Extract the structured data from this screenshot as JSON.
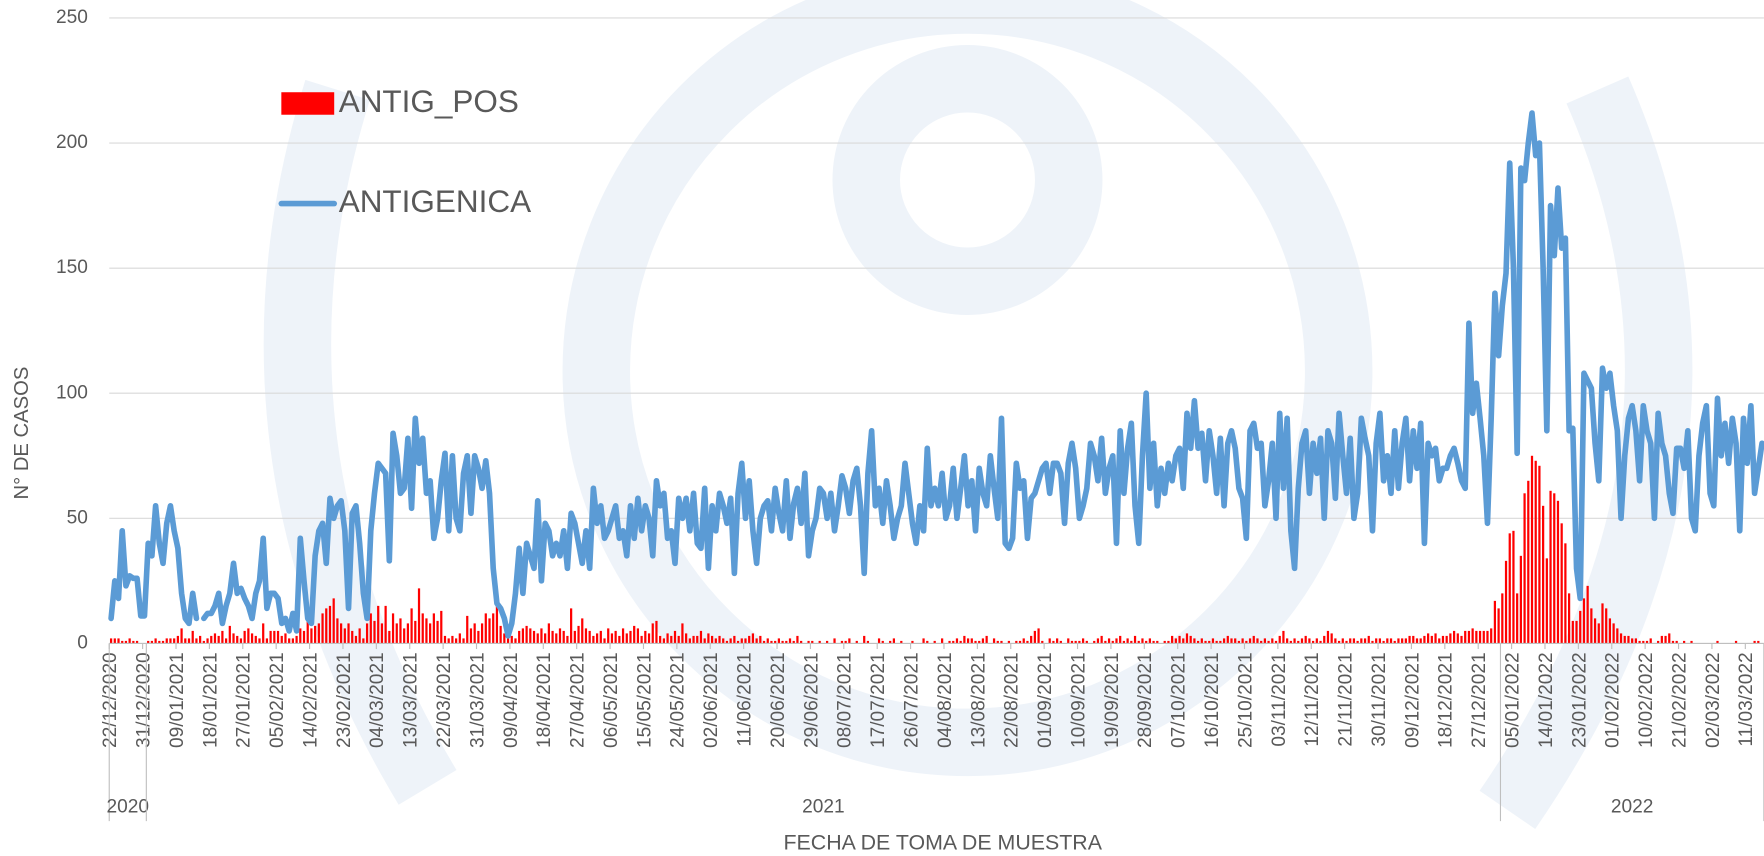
{
  "chart_data": {
    "type": "combo",
    "x_label": "FECHA DE TOMA DE MUESTRA",
    "y_label": "N° DE CASOS",
    "ylim": [
      0,
      250
    ],
    "yticks": [
      0,
      50,
      100,
      150,
      200,
      250
    ],
    "grid": true,
    "legend": "upper-left",
    "categories": [
      "22/12/2020",
      null,
      null,
      null,
      null,
      null,
      null,
      null,
      null,
      "31/12/2020",
      null,
      null,
      null,
      null,
      null,
      null,
      null,
      null,
      "09/01/2021",
      null,
      null,
      null,
      null,
      null,
      null,
      null,
      null,
      "18/01/2021",
      null,
      null,
      null,
      null,
      null,
      null,
      null,
      null,
      "27/01/2021",
      null,
      null,
      null,
      null,
      null,
      null,
      null,
      null,
      "05/02/2021",
      null,
      null,
      null,
      null,
      null,
      null,
      null,
      null,
      "14/02/2021",
      null,
      null,
      null,
      null,
      null,
      null,
      null,
      null,
      "23/02/2021",
      null,
      null,
      null,
      null,
      null,
      null,
      null,
      null,
      "04/03/2021",
      null,
      null,
      null,
      null,
      null,
      null,
      null,
      null,
      "13/03/2021",
      null,
      null,
      null,
      null,
      null,
      null,
      null,
      null,
      "22/03/2021",
      null,
      null,
      null,
      null,
      null,
      null,
      null,
      null,
      "31/03/2021",
      null,
      null,
      null,
      null,
      null,
      null,
      null,
      null,
      "09/04/2021",
      null,
      null,
      null,
      null,
      null,
      null,
      null,
      null,
      "18/04/2021",
      null,
      null,
      null,
      null,
      null,
      null,
      null,
      null,
      "27/04/2021",
      null,
      null,
      null,
      null,
      null,
      null,
      null,
      null,
      "06/05/2021",
      null,
      null,
      null,
      null,
      null,
      null,
      null,
      null,
      "15/05/2021",
      null,
      null,
      null,
      null,
      null,
      null,
      null,
      null,
      "24/05/2021",
      null,
      null,
      null,
      null,
      null,
      null,
      null,
      null,
      "02/06/2021",
      null,
      null,
      null,
      null,
      null,
      null,
      null,
      null,
      "11/06/2021",
      null,
      null,
      null,
      null,
      null,
      null,
      null,
      null,
      "20/06/2021",
      null,
      null,
      null,
      null,
      null,
      null,
      null,
      null,
      "29/06/2021",
      null,
      null,
      null,
      null,
      null,
      null,
      null,
      null,
      "08/07/2021",
      null,
      null,
      null,
      null,
      null,
      null,
      null,
      null,
      "17/07/2021",
      null,
      null,
      null,
      null,
      null,
      null,
      null,
      null,
      "26/07/2021",
      null,
      null,
      null,
      null,
      null,
      null,
      null,
      null,
      "04/08/2021",
      null,
      null,
      null,
      null,
      null,
      null,
      null,
      null,
      "13/08/2021",
      null,
      null,
      null,
      null,
      null,
      null,
      null,
      null,
      "22/08/2021",
      null,
      null,
      null,
      null,
      null,
      null,
      null,
      null,
      "01/09/2021",
      null,
      null,
      null,
      null,
      null,
      null,
      null,
      null,
      "10/09/2021",
      null,
      null,
      null,
      null,
      null,
      null,
      null,
      null,
      "19/09/2021",
      null,
      null,
      null,
      null,
      null,
      null,
      null,
      null,
      "28/09/2021",
      null,
      null,
      null,
      null,
      null,
      null,
      null,
      null,
      "07/10/2021",
      null,
      null,
      null,
      null,
      null,
      null,
      null,
      null,
      "16/10/2021",
      null,
      null,
      null,
      null,
      null,
      null,
      null,
      null,
      "25/10/2021",
      null,
      null,
      null,
      null,
      null,
      null,
      null,
      null,
      "03/11/2021",
      null,
      null,
      null,
      null,
      null,
      null,
      null,
      null,
      "12/11/2021",
      null,
      null,
      null,
      null,
      null,
      null,
      null,
      null,
      "21/11/2021",
      null,
      null,
      null,
      null,
      null,
      null,
      null,
      null,
      "30/11/2021",
      null,
      null,
      null,
      null,
      null,
      null,
      null,
      null,
      "09/12/2021",
      null,
      null,
      null,
      null,
      null,
      null,
      null,
      null,
      "18/12/2021",
      null,
      null,
      null,
      null,
      null,
      null,
      null,
      null,
      "27/12/2021",
      null,
      null,
      null,
      null,
      null,
      null,
      null,
      null,
      "05/01/2022",
      null,
      null,
      null,
      null,
      null,
      null,
      null,
      null,
      "14/01/2022",
      null,
      null,
      null,
      null,
      null,
      null,
      null,
      null,
      "23/01/2022",
      null,
      null,
      null,
      null,
      null,
      null,
      null,
      null,
      "01/02/2022",
      null,
      null,
      null,
      null,
      null,
      null,
      null,
      null,
      "10/02/2022",
      null,
      null,
      null,
      null,
      null,
      null,
      null,
      null,
      "21/02/2022",
      null,
      null,
      null,
      null,
      null,
      null,
      null,
      null,
      "02/03/2022",
      null,
      null,
      null,
      null,
      null,
      null,
      null,
      null,
      "11/03/2022",
      null,
      null,
      null,
      null
    ],
    "category_groups": [
      {
        "name": "2020",
        "count": 10
      },
      {
        "name": "2021",
        "count": 365
      },
      {
        "name": "2022",
        "count": 71
      }
    ],
    "series": [
      {
        "name": "ANTIG_POS",
        "type": "bar",
        "color": "#ff0000",
        "values": [
          2,
          2,
          2,
          1,
          1,
          2,
          1,
          1,
          0,
          0,
          1,
          1,
          2,
          1,
          1,
          2,
          2,
          2,
          3,
          6,
          2,
          2,
          5,
          2,
          3,
          1,
          2,
          3,
          4,
          3,
          5,
          2,
          7,
          4,
          3,
          2,
          5,
          6,
          4,
          3,
          2,
          8,
          2,
          5,
          5,
          5,
          3,
          4,
          2,
          2,
          3,
          6,
          5,
          10,
          6,
          7,
          8,
          12,
          14,
          15,
          18,
          10,
          8,
          6,
          8,
          5,
          3,
          6,
          2,
          8,
          12,
          9,
          15,
          8,
          15,
          5,
          12,
          8,
          10,
          6,
          8,
          14,
          9,
          22,
          12,
          10,
          8,
          12,
          9,
          13,
          3,
          2,
          3,
          2,
          4,
          2,
          11,
          6,
          8,
          5,
          8,
          12,
          10,
          12,
          18,
          7,
          4,
          2,
          3,
          2,
          5,
          6,
          7,
          6,
          5,
          4,
          6,
          4,
          8,
          5,
          4,
          6,
          5,
          3,
          14,
          5,
          7,
          10,
          6,
          5,
          3,
          4,
          5,
          2,
          6,
          4,
          5,
          3,
          6,
          4,
          5,
          7,
          6,
          3,
          5,
          4,
          8,
          9,
          3,
          2,
          4,
          3,
          5,
          3,
          8,
          4,
          2,
          3,
          3,
          5,
          2,
          4,
          3,
          2,
          3,
          2,
          1,
          2,
          3,
          1,
          2,
          2,
          3,
          4,
          2,
          3,
          1,
          2,
          1,
          1,
          2,
          1,
          1,
          2,
          1,
          3,
          1,
          0,
          1,
          1,
          0,
          1,
          0,
          1,
          0,
          2,
          0,
          1,
          1,
          2,
          0,
          1,
          0,
          3,
          1,
          0,
          0,
          2,
          1,
          0,
          1,
          2,
          0,
          1,
          0,
          0,
          1,
          0,
          0,
          2,
          1,
          0,
          1,
          0,
          2,
          0,
          1,
          1,
          2,
          1,
          3,
          2,
          2,
          1,
          1,
          2,
          3,
          0,
          2,
          1,
          1,
          0,
          1,
          0,
          1,
          1,
          2,
          1,
          3,
          5,
          6,
          1,
          0,
          2,
          1,
          2,
          1,
          0,
          2,
          1,
          1,
          1,
          2,
          1,
          0,
          1,
          2,
          3,
          1,
          2,
          1,
          2,
          3,
          1,
          2,
          1,
          3,
          1,
          2,
          1,
          2,
          1,
          1,
          0,
          1,
          1,
          3,
          2,
          3,
          2,
          4,
          3,
          2,
          1,
          2,
          1,
          1,
          2,
          1,
          1,
          2,
          3,
          2,
          2,
          1,
          2,
          1,
          2,
          3,
          2,
          1,
          2,
          1,
          2,
          1,
          3,
          5,
          2,
          1,
          2,
          1,
          2,
          3,
          2,
          1,
          2,
          1,
          3,
          5,
          4,
          2,
          1,
          2,
          1,
          2,
          2,
          1,
          2,
          2,
          3,
          1,
          2,
          2,
          1,
          2,
          2,
          1,
          2,
          2,
          2,
          3,
          3,
          2,
          2,
          3,
          4,
          3,
          4,
          2,
          3,
          3,
          4,
          5,
          4,
          3,
          5,
          5,
          6,
          5,
          5,
          5,
          5,
          6,
          17,
          14,
          20,
          33,
          44,
          45,
          20,
          35,
          60,
          65,
          75,
          73,
          71,
          55,
          34,
          61,
          60,
          57,
          48,
          40,
          20,
          9,
          9,
          13,
          18,
          23,
          14,
          10,
          8,
          16,
          14,
          10,
          8,
          6,
          4,
          3,
          3,
          2,
          2,
          1,
          1,
          1,
          2,
          0,
          1,
          3,
          3,
          4,
          1,
          1,
          0,
          1,
          0,
          1,
          0,
          0,
          0,
          0,
          0,
          0,
          1,
          0,
          0,
          0,
          0,
          1,
          0,
          0,
          0,
          0,
          1,
          1,
          0
        ]
      },
      {
        "name": "ANTIGENICA",
        "type": "line",
        "color": "#5b9bd5",
        "values": [
          10,
          25,
          18,
          45,
          23,
          27,
          26,
          26,
          11,
          11,
          40,
          35,
          55,
          40,
          32,
          48,
          55,
          45,
          38,
          20,
          10,
          8,
          20,
          10,
          null,
          10,
          12,
          12,
          15,
          20,
          8,
          15,
          20,
          32,
          20,
          22,
          18,
          15,
          10,
          20,
          25,
          42,
          14,
          20,
          20,
          18,
          8,
          10,
          5,
          12,
          5,
          42,
          25,
          10,
          8,
          35,
          45,
          48,
          32,
          58,
          50,
          55,
          57,
          45,
          14,
          52,
          55,
          40,
          20,
          10,
          45,
          60,
          72,
          70,
          68,
          33,
          84,
          75,
          60,
          62,
          82,
          54,
          90,
          72,
          82,
          60,
          65,
          42,
          50,
          65,
          76,
          45,
          75,
          50,
          45,
          68,
          75,
          52,
          75,
          70,
          62,
          73,
          60,
          30,
          16,
          14,
          10,
          3,
          8,
          20,
          38,
          20,
          40,
          35,
          30,
          57,
          25,
          48,
          45,
          35,
          40,
          35,
          45,
          30,
          52,
          48,
          40,
          32,
          45,
          30,
          62,
          48,
          55,
          42,
          45,
          50,
          55,
          42,
          45,
          35,
          55,
          42,
          58,
          45,
          55,
          50,
          35,
          65,
          55,
          60,
          42,
          45,
          32,
          58,
          50,
          58,
          45,
          60,
          40,
          38,
          62,
          30,
          55,
          45,
          60,
          55,
          48,
          58,
          28,
          60,
          72,
          50,
          65,
          45,
          32,
          50,
          55,
          57,
          45,
          62,
          52,
          45,
          65,
          42,
          56,
          62,
          48,
          68,
          35,
          45,
          50,
          62,
          60,
          50,
          60,
          45,
          55,
          67,
          62,
          52,
          65,
          70,
          55,
          28,
          68,
          85,
          55,
          62,
          48,
          65,
          55,
          42,
          50,
          55,
          72,
          60,
          48,
          40,
          55,
          45,
          78,
          55,
          62,
          55,
          68,
          50,
          55,
          70,
          50,
          62,
          75,
          55,
          65,
          45,
          70,
          60,
          55,
          75,
          62,
          50,
          90,
          40,
          38,
          42,
          72,
          62,
          65,
          42,
          58,
          60,
          65,
          70,
          72,
          60,
          72,
          72,
          68,
          48,
          72,
          80,
          70,
          50,
          55,
          62,
          80,
          75,
          65,
          82,
          60,
          70,
          75,
          40,
          85,
          60,
          78,
          88,
          55,
          40,
          75,
          100,
          62,
          80,
          55,
          70,
          60,
          72,
          65,
          75,
          78,
          62,
          92,
          78,
          97,
          78,
          84,
          65,
          85,
          75,
          60,
          82,
          55,
          80,
          85,
          78,
          62,
          58,
          42,
          85,
          88,
          78,
          80,
          55,
          65,
          80,
          50,
          92,
          62,
          90,
          45,
          30,
          62,
          80,
          85,
          60,
          80,
          68,
          82,
          50,
          85,
          80,
          58,
          92,
          75,
          60,
          82,
          50,
          60,
          90,
          82,
          75,
          45,
          80,
          92,
          65,
          75,
          60,
          85,
          62,
          80,
          90,
          65,
          85,
          70,
          88,
          40,
          80,
          75,
          78,
          65,
          70,
          70,
          75,
          78,
          72,
          65,
          62,
          128,
          92,
          104,
          90,
          75,
          48,
          90,
          140,
          115,
          135,
          148,
          192,
          150,
          76,
          190,
          185,
          200,
          212,
          195,
          200,
          150,
          85,
          175,
          155,
          182,
          158,
          162,
          85,
          86,
          30,
          18,
          108,
          105,
          102,
          80,
          65,
          110,
          102,
          108,
          95,
          85,
          50,
          75,
          90,
          95,
          85,
          65,
          95,
          85,
          80,
          50,
          92,
          80,
          75,
          60,
          52,
          78,
          78,
          70,
          85,
          50,
          45,
          75,
          88,
          95,
          60,
          55,
          98,
          75,
          88,
          72,
          90,
          80,
          45,
          90,
          72,
          95,
          60,
          70,
          80
        ]
      }
    ]
  }
}
